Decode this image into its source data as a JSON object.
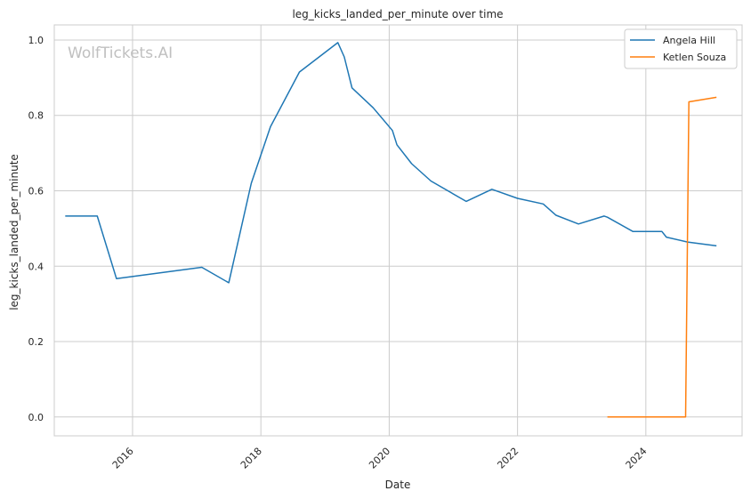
{
  "chart_data": {
    "type": "line",
    "title": "leg_kicks_landed_per_minute over time",
    "xlabel": "Date",
    "ylabel": "leg_kicks_landed_per_minute",
    "watermark": "WolfTickets.AI",
    "xlim": [
      2014.78,
      2025.5
    ],
    "ylim": [
      -0.05,
      1.04
    ],
    "x_ticks": [
      2016,
      2018,
      2020,
      2022,
      2024
    ],
    "x_tick_labels": [
      "2016",
      "2018",
      "2020",
      "2022",
      "2024"
    ],
    "y_ticks": [
      0.0,
      0.2,
      0.4,
      0.6,
      0.8,
      1.0
    ],
    "y_tick_labels": [
      "0.0",
      "0.2",
      "0.4",
      "0.6",
      "0.8",
      "1.0"
    ],
    "grid": true,
    "legend_position": "top-right",
    "series": [
      {
        "name": "Angela Hill",
        "color": "#1f77b4",
        "points": [
          [
            2014.95,
            0.533
          ],
          [
            2015.45,
            0.533
          ],
          [
            2015.75,
            0.367
          ],
          [
            2017.08,
            0.397
          ],
          [
            2017.5,
            0.356
          ],
          [
            2017.85,
            0.62
          ],
          [
            2018.15,
            0.77
          ],
          [
            2018.6,
            0.915
          ],
          [
            2019.2,
            0.993
          ],
          [
            2019.3,
            0.955
          ],
          [
            2019.42,
            0.873
          ],
          [
            2019.75,
            0.82
          ],
          [
            2020.05,
            0.76
          ],
          [
            2020.12,
            0.722
          ],
          [
            2020.35,
            0.672
          ],
          [
            2020.65,
            0.626
          ],
          [
            2021.2,
            0.572
          ],
          [
            2021.6,
            0.604
          ],
          [
            2022.0,
            0.58
          ],
          [
            2022.4,
            0.565
          ],
          [
            2022.6,
            0.535
          ],
          [
            2022.95,
            0.512
          ],
          [
            2023.35,
            0.533
          ],
          [
            2023.4,
            0.53
          ],
          [
            2023.8,
            0.492
          ],
          [
            2024.25,
            0.492
          ],
          [
            2024.32,
            0.477
          ],
          [
            2024.65,
            0.464
          ],
          [
            2025.1,
            0.454
          ]
        ]
      },
      {
        "name": "Ketlen Souza",
        "color": "#ff7f0e",
        "points": [
          [
            2023.4,
            0.0
          ],
          [
            2024.62,
            0.0
          ],
          [
            2024.67,
            0.836
          ],
          [
            2025.1,
            0.848
          ]
        ]
      }
    ]
  }
}
